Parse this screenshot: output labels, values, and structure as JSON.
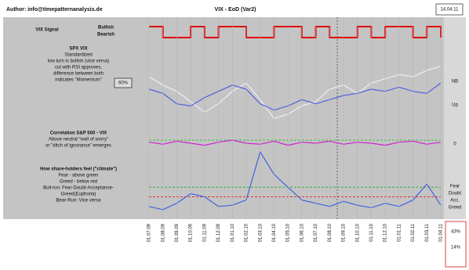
{
  "header": {
    "author": "Author: info@timepatternanalysis.de",
    "title": "VIX - EoD (Var2)",
    "date": "14.04.11"
  },
  "chart_data": [
    {
      "type": "step",
      "title": "VIX Signal",
      "legend": [
        "Bullish",
        "Bearish"
      ],
      "ylim": [
        0,
        1
      ],
      "series": [
        {
          "name": "Signal",
          "color": "#e00000",
          "values": [
            1,
            0,
            0,
            1,
            0,
            1,
            1,
            0,
            0,
            1,
            1,
            0,
            1,
            0,
            0,
            1,
            0,
            1,
            1,
            0,
            1,
            0
          ]
        }
      ]
    },
    {
      "type": "line",
      "title": "SPX VIX",
      "subtitle": "Standardized",
      "notes": [
        "low turn is bullish (vice versa)",
        "cut with RSI approves,",
        "difference between both",
        "indicates \"Momentum\""
      ],
      "box": "60%",
      "right_labels": [
        "NB",
        "Up"
      ],
      "ylim": [
        -1.5,
        1.5
      ],
      "series": [
        {
          "name": "SPX",
          "color": "#eeeef6",
          "values": [
            0.9,
            0.5,
            0.2,
            -0.3,
            -0.8,
            -0.4,
            0.2,
            0.6,
            -0.2,
            -1.1,
            -0.9,
            -0.5,
            -0.3,
            0.3,
            0.5,
            0.1,
            0.6,
            0.8,
            1.0,
            0.9,
            1.2,
            1.4
          ]
        },
        {
          "name": "VIX",
          "color": "#5060e0",
          "values": [
            0.3,
            0.1,
            -0.4,
            -0.5,
            -0.1,
            0.2,
            0.5,
            0.3,
            -0.4,
            -0.7,
            -0.5,
            -0.2,
            -0.4,
            -0.2,
            0.0,
            0.1,
            0.3,
            0.2,
            0.4,
            0.2,
            0.1,
            0.6
          ]
        }
      ]
    },
    {
      "type": "line",
      "title": "Correlation S&P 500 - VIX",
      "notes": [
        "Above neutral \"wall of worry\"",
        "or \"ditch of ignorance\" emerges"
      ],
      "right_labels": [
        "0"
      ],
      "ylim": [
        -1,
        1
      ],
      "reference_lines": [
        {
          "value": 0.3,
          "color": "#40c040"
        }
      ],
      "series": [
        {
          "name": "Correlation",
          "color": "#d020d0",
          "values": [
            0.1,
            -0.1,
            0.2,
            0.0,
            -0.2,
            0.1,
            0.3,
            0.0,
            -0.1,
            0.2,
            -0.2,
            0.1,
            0.0,
            0.2,
            -0.1,
            0.1,
            0.0,
            -0.2,
            0.1,
            0.2,
            -0.1,
            0.1
          ]
        }
      ]
    },
    {
      "type": "line",
      "title": "How share-holders feel (\"climate\")",
      "notes": [
        "Fear - above green",
        "Greed - below red",
        "Bull-run: Fear-Doubt-Acceptance-",
        "Greed(Euphoria)",
        "Bear-Run: Vice versa"
      ],
      "right_labels": [
        "Fear",
        "Doubt",
        "Acc.",
        "Greed"
      ],
      "readouts": [
        "43%",
        "14%"
      ],
      "ylim": [
        0,
        100
      ],
      "reference_lines": [
        {
          "value": 40,
          "color": "#30b030"
        },
        {
          "value": 25,
          "color": "#e03030"
        }
      ],
      "categories": [
        "01.07.09",
        "01.08.09",
        "01.09.09",
        "01.10.09",
        "01.11.09",
        "01.12.09",
        "01.01.10",
        "01.02.10",
        "01.03.10",
        "01.04.10",
        "01.05.10",
        "01.06.10",
        "01.07.10",
        "01.08.10",
        "01.09.10",
        "01.10.10",
        "01.11.10",
        "01.12.10",
        "01.01.11",
        "01.02.11",
        "01.03.11",
        "01.04.11"
      ],
      "series": [
        {
          "name": "Climate",
          "color": "#4060e0",
          "values": [
            10,
            5,
            15,
            30,
            25,
            10,
            12,
            20,
            95,
            60,
            40,
            20,
            15,
            10,
            18,
            12,
            8,
            15,
            10,
            20,
            45,
            12
          ]
        }
      ]
    }
  ]
}
